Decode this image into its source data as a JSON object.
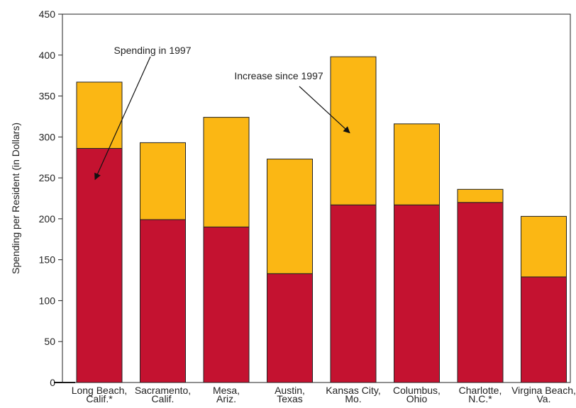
{
  "chart_data": {
    "type": "bar",
    "stacked": true,
    "title": "",
    "xlabel": "",
    "ylabel": "Spending per Resident (in Dollars)",
    "ylim": [
      0,
      450
    ],
    "yticks": [
      0,
      50,
      100,
      150,
      200,
      250,
      300,
      350,
      400,
      450
    ],
    "grid": false,
    "legend": "none",
    "categories": [
      [
        "Long Beach,",
        "Calif.*"
      ],
      [
        "Sacramento,",
        "Calif."
      ],
      [
        "Mesa,",
        "Ariz."
      ],
      [
        "Austin,",
        "Texas"
      ],
      [
        "Kansas City,",
        "Mo."
      ],
      [
        "Columbus,",
        "Ohio"
      ],
      [
        "Charlotte,",
        "N.C.*"
      ],
      [
        "Virgina Beach,",
        "Va."
      ]
    ],
    "series": [
      {
        "name": "Spending in 1997",
        "color": "#c41230",
        "values": [
          286,
          199,
          190,
          133,
          217,
          217,
          220,
          129
        ]
      },
      {
        "name": "Increase since 1997",
        "color": "#fbb714",
        "values": [
          81,
          94,
          134,
          140,
          181,
          99,
          16,
          74
        ]
      }
    ],
    "annotations": [
      {
        "text": "Spending in 1997",
        "series": 0,
        "category": 0,
        "value": 248
      },
      {
        "text": "Increase since 1997",
        "series": 1,
        "category": 4,
        "value": 305
      }
    ]
  }
}
